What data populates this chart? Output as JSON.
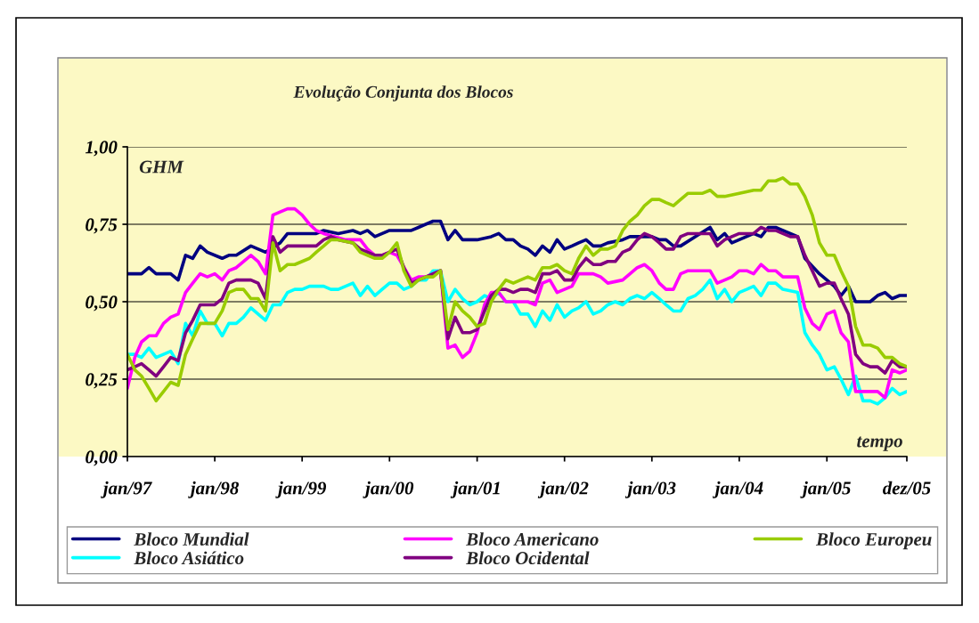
{
  "chart_data": {
    "type": "line",
    "title": "Evolução Conjunta dos Blocos",
    "annotations": [
      "GHM",
      "tempo"
    ],
    "xlim": [
      "1997-01",
      "2005-12"
    ],
    "xticks": [
      {
        "value": "1997-01",
        "label": "jan/97"
      },
      {
        "value": "1998-01",
        "label": "jan/98"
      },
      {
        "value": "1999-01",
        "label": "jan/99"
      },
      {
        "value": "2000-01",
        "label": "jan/00"
      },
      {
        "value": "2001-01",
        "label": "jan/01"
      },
      {
        "value": "2002-01",
        "label": "jan/02"
      },
      {
        "value": "2003-01",
        "label": "jan/03"
      },
      {
        "value": "2004-01",
        "label": "jan/04"
      },
      {
        "value": "2005-01",
        "label": "jan/05"
      },
      {
        "value": "2005-12",
        "label": "dez/05"
      }
    ],
    "ylim": [
      0,
      1
    ],
    "yticks": [
      {
        "value": 0,
        "label": "0,00"
      },
      {
        "value": 0.25,
        "label": "0,25"
      },
      {
        "value": 0.5,
        "label": "0,50"
      },
      {
        "value": 0.75,
        "label": "0,75"
      },
      {
        "value": 1,
        "label": "1,00"
      }
    ],
    "grid": "y",
    "legend": "bottom",
    "series": [
      {
        "name": "Bloco Mundial",
        "color": "#000080",
        "x": [
          "1997-01",
          "1997-03",
          "1997-04",
          "1997-05",
          "1997-07",
          "1997-08",
          "1997-09",
          "1997-10",
          "1997-11",
          "1997-12",
          "1998-02",
          "1998-03",
          "1998-04",
          "1998-06",
          "1998-08",
          "1998-10",
          "1998-11",
          "1998-12",
          "1999-03",
          "1999-04",
          "1999-06",
          "1999-08",
          "1999-09",
          "1999-10",
          "1999-11",
          "2000-01",
          "2000-04",
          "2000-05",
          "2000-07",
          "2000-08",
          "2000-09",
          "2000-10",
          "2000-11",
          "2000-12",
          "2001-01",
          "2001-03",
          "2001-04",
          "2001-05",
          "2001-06",
          "2001-07",
          "2001-08",
          "2001-09",
          "2001-10",
          "2001-11",
          "2001-12",
          "2002-01",
          "2002-02",
          "2002-03",
          "2002-04",
          "2002-05",
          "2002-06",
          "2002-07",
          "2002-09",
          "2002-10",
          "2002-12",
          "2003-01",
          "2003-02",
          "2003-03",
          "2003-04",
          "2003-05",
          "2003-07",
          "2003-09",
          "2003-10",
          "2003-11",
          "2003-12",
          "2004-03",
          "2004-04",
          "2004-05",
          "2004-06",
          "2004-09",
          "2004-10",
          "2004-12",
          "2005-01",
          "2005-02",
          "2005-03",
          "2005-04",
          "2005-05",
          "2005-06",
          "2005-07",
          "2005-08",
          "2005-09",
          "2005-10",
          "2005-11",
          "2005-12"
        ],
        "values": [
          0.59,
          0.59,
          0.61,
          0.59,
          0.59,
          0.57,
          0.65,
          0.64,
          0.68,
          0.66,
          0.64,
          0.65,
          0.65,
          0.68,
          0.66,
          0.69,
          0.72,
          0.72,
          0.72,
          0.73,
          0.72,
          0.73,
          0.72,
          0.73,
          0.71,
          0.73,
          0.73,
          0.74,
          0.76,
          0.76,
          0.7,
          0.73,
          0.7,
          0.7,
          0.7,
          0.71,
          0.72,
          0.7,
          0.7,
          0.68,
          0.67,
          0.65,
          0.68,
          0.66,
          0.7,
          0.67,
          0.68,
          0.69,
          0.7,
          0.68,
          0.68,
          0.69,
          0.7,
          0.71,
          0.71,
          0.71,
          0.7,
          0.7,
          0.68,
          0.68,
          0.71,
          0.74,
          0.7,
          0.72,
          0.69,
          0.72,
          0.71,
          0.74,
          0.74,
          0.71,
          0.64,
          0.59,
          0.57,
          0.55,
          0.52,
          0.55,
          0.5,
          0.5,
          0.5,
          0.52,
          0.53,
          0.51,
          0.52,
          0.52
        ]
      },
      {
        "name": "Bloco Asiático",
        "color": "#00ffff",
        "x": [
          "1997-01",
          "1997-02",
          "1997-03",
          "1997-04",
          "1997-05",
          "1997-06",
          "1997-07",
          "1997-08",
          "1997-09",
          "1997-10",
          "1997-11",
          "1997-12",
          "1998-01",
          "1998-02",
          "1998-03",
          "1998-04",
          "1998-05",
          "1998-06",
          "1998-07",
          "1998-08",
          "1998-09",
          "1998-10",
          "1998-11",
          "1998-12",
          "1999-01",
          "1999-02",
          "1999-03",
          "1999-04",
          "1999-05",
          "1999-06",
          "1999-08",
          "1999-09",
          "1999-10",
          "1999-11",
          "1999-12",
          "2000-01",
          "2000-02",
          "2000-03",
          "2000-04",
          "2000-05",
          "2000-06",
          "2000-07",
          "2000-08",
          "2000-09",
          "2000-10",
          "2000-11",
          "2000-12",
          "2001-01",
          "2001-02",
          "2001-03",
          "2001-04",
          "2001-05",
          "2001-06",
          "2001-07",
          "2001-08",
          "2001-09",
          "2001-10",
          "2001-11",
          "2001-12",
          "2002-01",
          "2002-02",
          "2002-03",
          "2002-04",
          "2002-05",
          "2002-06",
          "2002-07",
          "2002-08",
          "2002-09",
          "2002-10",
          "2002-11",
          "2002-12",
          "2003-01",
          "2003-02",
          "2003-03",
          "2003-04",
          "2003-05",
          "2003-06",
          "2003-07",
          "2003-08",
          "2003-09",
          "2003-10",
          "2003-11",
          "2003-12",
          "2004-01",
          "2004-02",
          "2004-03",
          "2004-04",
          "2004-05",
          "2004-06",
          "2004-07",
          "2004-09",
          "2004-10",
          "2004-11",
          "2004-12",
          "2005-01",
          "2005-02",
          "2005-03",
          "2005-04",
          "2005-05",
          "2005-06",
          "2005-07",
          "2005-08",
          "2005-09",
          "2005-10",
          "2005-11",
          "2005-12"
        ],
        "values": [
          0.33,
          0.33,
          0.32,
          0.35,
          0.32,
          0.33,
          0.34,
          0.3,
          0.43,
          0.39,
          0.47,
          0.43,
          0.43,
          0.39,
          0.43,
          0.43,
          0.45,
          0.48,
          0.46,
          0.44,
          0.49,
          0.49,
          0.53,
          0.54,
          0.54,
          0.55,
          0.55,
          0.55,
          0.54,
          0.54,
          0.56,
          0.52,
          0.55,
          0.52,
          0.54,
          0.56,
          0.56,
          0.54,
          0.55,
          0.57,
          0.57,
          0.6,
          0.6,
          0.5,
          0.54,
          0.51,
          0.49,
          0.5,
          0.52,
          0.51,
          0.53,
          0.5,
          0.5,
          0.46,
          0.46,
          0.42,
          0.47,
          0.44,
          0.49,
          0.45,
          0.47,
          0.48,
          0.5,
          0.46,
          0.47,
          0.49,
          0.5,
          0.49,
          0.51,
          0.52,
          0.51,
          0.53,
          0.51,
          0.49,
          0.47,
          0.47,
          0.51,
          0.52,
          0.54,
          0.57,
          0.51,
          0.54,
          0.5,
          0.53,
          0.54,
          0.55,
          0.52,
          0.56,
          0.56,
          0.54,
          0.53,
          0.4,
          0.36,
          0.33,
          0.28,
          0.29,
          0.25,
          0.2,
          0.26,
          0.18,
          0.18,
          0.17,
          0.19,
          0.22,
          0.2,
          0.21
        ]
      },
      {
        "name": "Bloco Americano",
        "color": "#ff00ff",
        "x": [
          "1997-01",
          "1997-02",
          "1997-03",
          "1997-04",
          "1997-05",
          "1997-06",
          "1997-07",
          "1997-08",
          "1997-09",
          "1997-10",
          "1997-11",
          "1997-12",
          "1998-01",
          "1998-02",
          "1998-03",
          "1998-04",
          "1998-05",
          "1998-06",
          "1998-07",
          "1998-08",
          "1998-09",
          "1998-10",
          "1998-11",
          "1998-12",
          "1999-01",
          "1999-02",
          "1999-03",
          "1999-04",
          "1999-07",
          "1999-09",
          "1999-10",
          "1999-11",
          "1999-12",
          "2000-01",
          "2000-02",
          "2000-04",
          "2000-05",
          "2000-06",
          "2000-07",
          "2000-08",
          "2000-09",
          "2000-10",
          "2000-11",
          "2000-12",
          "2001-01",
          "2001-02",
          "2001-03",
          "2001-04",
          "2001-05",
          "2001-06",
          "2001-07",
          "2001-08",
          "2001-09",
          "2001-10",
          "2001-11",
          "2001-12",
          "2002-02",
          "2002-03",
          "2002-05",
          "2002-06",
          "2002-07",
          "2002-09",
          "2002-11",
          "2002-12",
          "2003-01",
          "2003-02",
          "2003-03",
          "2003-04",
          "2003-05",
          "2003-06",
          "2003-09",
          "2003-10",
          "2003-11",
          "2003-12",
          "2004-01",
          "2004-02",
          "2004-03",
          "2004-04",
          "2004-05",
          "2004-06",
          "2004-07",
          "2004-09",
          "2004-10",
          "2004-11",
          "2004-12",
          "2005-01",
          "2005-02",
          "2005-03",
          "2005-04",
          "2005-05",
          "2005-06",
          "2005-07",
          "2005-08",
          "2005-09",
          "2005-10",
          "2005-11",
          "2005-12"
        ],
        "values": [
          0.22,
          0.32,
          0.37,
          0.39,
          0.39,
          0.43,
          0.45,
          0.46,
          0.53,
          0.56,
          0.59,
          0.58,
          0.59,
          0.57,
          0.6,
          0.61,
          0.63,
          0.65,
          0.63,
          0.59,
          0.78,
          0.79,
          0.8,
          0.8,
          0.78,
          0.75,
          0.73,
          0.72,
          0.7,
          0.7,
          0.67,
          0.65,
          0.65,
          0.66,
          0.65,
          0.57,
          0.58,
          0.58,
          0.59,
          0.6,
          0.35,
          0.36,
          0.32,
          0.34,
          0.4,
          0.49,
          0.53,
          0.53,
          0.5,
          0.5,
          0.5,
          0.5,
          0.49,
          0.56,
          0.57,
          0.53,
          0.55,
          0.59,
          0.59,
          0.58,
          0.56,
          0.57,
          0.61,
          0.62,
          0.6,
          0.56,
          0.54,
          0.54,
          0.59,
          0.6,
          0.6,
          0.56,
          0.57,
          0.58,
          0.6,
          0.6,
          0.59,
          0.62,
          0.6,
          0.6,
          0.58,
          0.58,
          0.48,
          0.43,
          0.41,
          0.46,
          0.47,
          0.4,
          0.37,
          0.21,
          0.21,
          0.21,
          0.21,
          0.19,
          0.28,
          0.27,
          0.28
        ]
      },
      {
        "name": "Bloco Ocidental",
        "color": "#800080",
        "x": [
          "1997-01",
          "1997-02",
          "1997-03",
          "1997-04",
          "1997-05",
          "1997-06",
          "1997-07",
          "1997-08",
          "1997-09",
          "1997-10",
          "1997-11",
          "1997-12",
          "1998-01",
          "1998-02",
          "1998-03",
          "1998-04",
          "1998-05",
          "1998-06",
          "1998-07",
          "1998-08",
          "1998-09",
          "1998-10",
          "1998-11",
          "1998-12",
          "1999-03",
          "1999-04",
          "1999-05",
          "1999-06",
          "1999-08",
          "1999-09",
          "1999-10",
          "1999-11",
          "1999-12",
          "2000-01",
          "2000-02",
          "2000-03",
          "2000-04",
          "2000-05",
          "2000-06",
          "2000-07",
          "2000-08",
          "2000-09",
          "2000-10",
          "2000-11",
          "2000-12",
          "2001-01",
          "2001-02",
          "2001-03",
          "2001-04",
          "2001-05",
          "2001-06",
          "2001-07",
          "2001-08",
          "2001-09",
          "2001-10",
          "2001-11",
          "2001-12",
          "2002-01",
          "2002-02",
          "2002-03",
          "2002-04",
          "2002-05",
          "2002-06",
          "2002-07",
          "2002-08",
          "2002-09",
          "2002-10",
          "2002-11",
          "2002-12",
          "2003-01",
          "2003-02",
          "2003-03",
          "2003-04",
          "2003-05",
          "2003-06",
          "2003-07",
          "2003-09",
          "2003-10",
          "2003-11",
          "2003-12",
          "2004-01",
          "2004-03",
          "2004-04",
          "2004-05",
          "2004-06",
          "2004-07",
          "2004-08",
          "2004-09",
          "2004-10",
          "2004-11",
          "2004-12",
          "2005-01",
          "2005-02",
          "2005-03",
          "2005-04",
          "2005-05",
          "2005-06",
          "2005-07",
          "2005-08",
          "2005-09",
          "2005-10",
          "2005-11",
          "2005-12"
        ],
        "values": [
          0.28,
          0.29,
          0.3,
          0.28,
          0.26,
          0.29,
          0.32,
          0.31,
          0.4,
          0.44,
          0.49,
          0.49,
          0.49,
          0.51,
          0.56,
          0.57,
          0.57,
          0.57,
          0.56,
          0.51,
          0.71,
          0.66,
          0.68,
          0.68,
          0.68,
          0.7,
          0.71,
          0.7,
          0.69,
          0.67,
          0.66,
          0.65,
          0.65,
          0.66,
          0.67,
          0.61,
          0.56,
          0.57,
          0.58,
          0.59,
          0.6,
          0.38,
          0.45,
          0.4,
          0.4,
          0.41,
          0.47,
          0.52,
          0.54,
          0.54,
          0.53,
          0.54,
          0.54,
          0.53,
          0.59,
          0.59,
          0.6,
          0.57,
          0.57,
          0.61,
          0.64,
          0.62,
          0.62,
          0.63,
          0.63,
          0.66,
          0.67,
          0.7,
          0.72,
          0.71,
          0.69,
          0.67,
          0.67,
          0.71,
          0.72,
          0.72,
          0.72,
          0.68,
          0.7,
          0.71,
          0.72,
          0.72,
          0.74,
          0.73,
          0.73,
          0.72,
          0.71,
          0.71,
          0.65,
          0.6,
          0.55,
          0.56,
          0.56,
          0.51,
          0.46,
          0.33,
          0.3,
          0.29,
          0.29,
          0.27,
          0.31,
          0.29,
          0.29
        ]
      },
      {
        "name": "Bloco Europeu",
        "color": "#99cc00",
        "x": [
          "1997-01",
          "1997-02",
          "1997-03",
          "1997-04",
          "1997-05",
          "1997-06",
          "1997-07",
          "1997-08",
          "1997-09",
          "1997-10",
          "1997-11",
          "1997-12",
          "1998-01",
          "1998-02",
          "1998-03",
          "1998-04",
          "1998-05",
          "1998-06",
          "1998-07",
          "1998-08",
          "1998-09",
          "1998-10",
          "1998-11",
          "1998-12",
          "1999-01",
          "1999-02",
          "1999-03",
          "1999-04",
          "1999-05",
          "1999-06",
          "1999-08",
          "1999-09",
          "1999-10",
          "1999-11",
          "1999-12",
          "2000-01",
          "2000-02",
          "2000-03",
          "2000-04",
          "2000-05",
          "2000-06",
          "2000-07",
          "2000-08",
          "2000-09",
          "2000-10",
          "2000-11",
          "2000-12",
          "2001-01",
          "2001-02",
          "2001-03",
          "2001-04",
          "2001-05",
          "2001-06",
          "2001-07",
          "2001-08",
          "2001-09",
          "2001-10",
          "2001-11",
          "2001-12",
          "2002-01",
          "2002-02",
          "2002-03",
          "2002-04",
          "2002-05",
          "2002-06",
          "2002-07",
          "2002-08",
          "2002-09",
          "2002-10",
          "2002-11",
          "2002-12",
          "2003-01",
          "2003-02",
          "2003-03",
          "2003-04",
          "2003-05",
          "2003-06",
          "2003-08",
          "2003-09",
          "2003-10",
          "2003-11",
          "2004-01",
          "2004-03",
          "2004-04",
          "2004-05",
          "2004-06",
          "2004-07",
          "2004-08",
          "2004-09",
          "2004-10",
          "2004-11",
          "2004-12",
          "2005-01",
          "2005-02",
          "2005-03",
          "2005-04",
          "2005-05",
          "2005-06",
          "2005-07",
          "2005-08",
          "2005-09",
          "2005-10",
          "2005-11",
          "2005-12"
        ],
        "values": [
          0.33,
          0.28,
          0.26,
          0.22,
          0.18,
          0.21,
          0.24,
          0.23,
          0.33,
          0.38,
          0.43,
          0.43,
          0.43,
          0.47,
          0.53,
          0.54,
          0.54,
          0.51,
          0.51,
          0.47,
          0.69,
          0.6,
          0.62,
          0.62,
          0.63,
          0.64,
          0.66,
          0.68,
          0.7,
          0.7,
          0.69,
          0.66,
          0.65,
          0.64,
          0.64,
          0.66,
          0.69,
          0.6,
          0.55,
          0.57,
          0.58,
          0.58,
          0.6,
          0.41,
          0.5,
          0.47,
          0.45,
          0.42,
          0.43,
          0.5,
          0.54,
          0.57,
          0.56,
          0.57,
          0.58,
          0.57,
          0.61,
          0.61,
          0.62,
          0.6,
          0.59,
          0.64,
          0.68,
          0.65,
          0.67,
          0.67,
          0.68,
          0.73,
          0.76,
          0.78,
          0.81,
          0.83,
          0.83,
          0.82,
          0.81,
          0.83,
          0.85,
          0.85,
          0.86,
          0.84,
          0.84,
          0.85,
          0.86,
          0.86,
          0.89,
          0.89,
          0.9,
          0.88,
          0.88,
          0.84,
          0.78,
          0.69,
          0.65,
          0.65,
          0.6,
          0.55,
          0.42,
          0.36,
          0.36,
          0.35,
          0.32,
          0.32,
          0.3,
          0.29
        ]
      }
    ]
  }
}
